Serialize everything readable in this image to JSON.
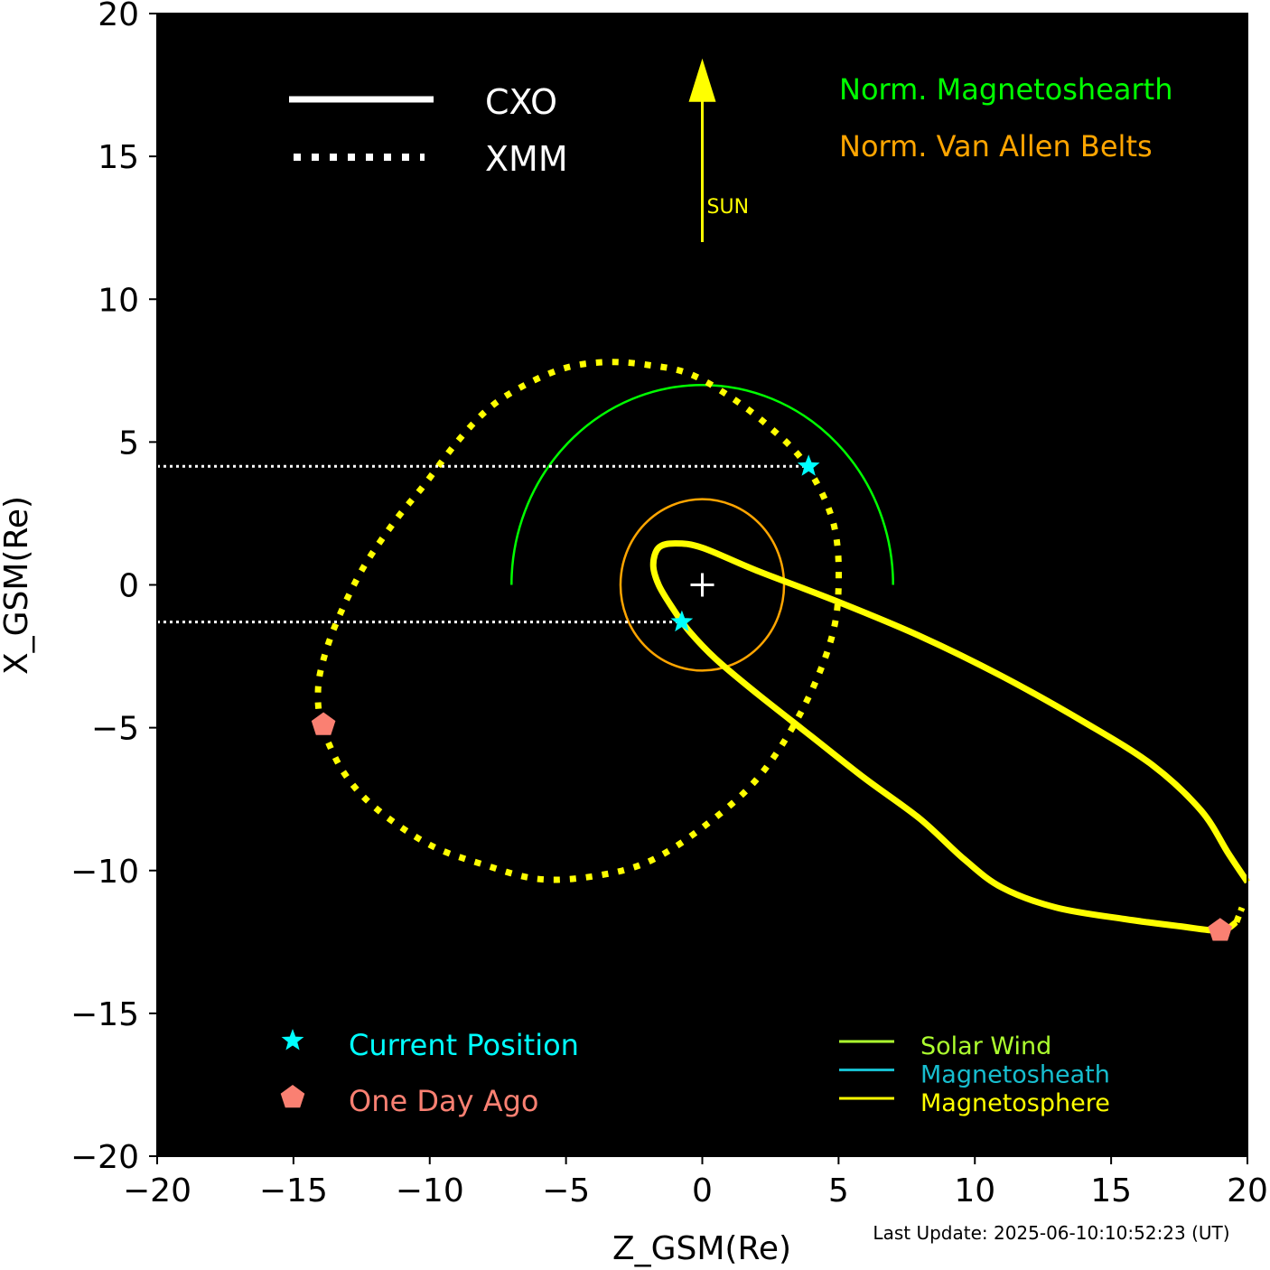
{
  "chart_data": {
    "type": "scatter",
    "xlabel": "Z_GSM(Re)",
    "ylabel": "X_GSM(Re)",
    "xlim": [
      -20,
      20
    ],
    "ylim": [
      -20,
      20
    ],
    "xticks": [
      -20,
      -15,
      -10,
      -5,
      0,
      5,
      10,
      15,
      20
    ],
    "yticks": [
      -20,
      -15,
      -10,
      -5,
      0,
      5,
      10,
      15,
      20
    ],
    "xtick_labels": [
      "−20",
      "−15",
      "−10",
      "−5",
      "0",
      "5",
      "10",
      "15",
      "20"
    ],
    "ytick_labels": [
      "−20",
      "−15",
      "−10",
      "−5",
      "0",
      "5",
      "10",
      "15",
      "20"
    ],
    "background": "#000000",
    "series": [
      {
        "name": "CXO",
        "style": "solid",
        "color": "#ffff00",
        "points": [
          [
            20,
            -10.4
          ],
          [
            19.3,
            -9.4
          ],
          [
            18.3,
            -7.9
          ],
          [
            16.5,
            -6.3
          ],
          [
            14,
            -4.8
          ],
          [
            11,
            -3.2
          ],
          [
            8,
            -1.8
          ],
          [
            5,
            -0.6
          ],
          [
            2,
            0.5
          ],
          [
            0,
            1.3
          ],
          [
            -1,
            1.45
          ],
          [
            -1.6,
            1.3
          ],
          [
            -1.8,
            0.7
          ],
          [
            -1.6,
            0
          ],
          [
            -1.1,
            -0.8
          ],
          [
            -0.5,
            -1.6
          ],
          [
            0.5,
            -2.6
          ],
          [
            2,
            -3.8
          ],
          [
            4,
            -5.3
          ],
          [
            6,
            -6.8
          ],
          [
            8,
            -8.2
          ],
          [
            9.6,
            -9.6
          ],
          [
            11,
            -10.6
          ],
          [
            13,
            -11.3
          ],
          [
            15.5,
            -11.7
          ],
          [
            17.5,
            -11.95
          ],
          [
            19,
            -12.1
          ],
          [
            19.6,
            -11.8
          ]
        ]
      },
      {
        "name": "XMM",
        "style": "dotted",
        "color": "#ffff00",
        "points": [
          [
            -14,
            -4.9
          ],
          [
            -14.1,
            -4
          ],
          [
            -14,
            -3
          ],
          [
            -13.5,
            -1.5
          ],
          [
            -12.5,
            0.5
          ],
          [
            -11.3,
            2.2
          ],
          [
            -10.2,
            3.5
          ],
          [
            -9,
            5
          ],
          [
            -7.8,
            6.2
          ],
          [
            -6.5,
            7
          ],
          [
            -5,
            7.6
          ],
          [
            -3.5,
            7.8
          ],
          [
            -2,
            7.7
          ],
          [
            -0.5,
            7.4
          ],
          [
            1,
            6.6
          ],
          [
            2.5,
            5.5
          ],
          [
            3.8,
            4.2
          ],
          [
            4.8,
            2.2
          ],
          [
            5,
            0
          ],
          [
            4.7,
            -2
          ],
          [
            3.6,
            -4.5
          ],
          [
            2,
            -6.8
          ],
          [
            0,
            -8.5
          ],
          [
            -2,
            -9.7
          ],
          [
            -4,
            -10.2
          ],
          [
            -6,
            -10.3
          ],
          [
            -8,
            -9.8
          ],
          [
            -10,
            -9.1
          ],
          [
            -12,
            -7.8
          ],
          [
            -13.2,
            -6.5
          ],
          [
            -14,
            -4.9
          ]
        ]
      }
    ],
    "extra_xmm_points": [
      [
        19.6,
        -11.8
      ],
      [
        19.8,
        -11.3
      ]
    ],
    "current_position": [
      {
        "series": "XMM",
        "z": 3.9,
        "x": 4.15
      },
      {
        "series": "CXO",
        "z": -0.75,
        "x": -1.3
      }
    ],
    "one_day_ago": [
      {
        "series": "XMM",
        "z": -13.9,
        "x": -4.9
      },
      {
        "series": "CXO",
        "z": 19.0,
        "x": -12.1
      }
    ],
    "magnetosheath_norm": {
      "center": [
        0,
        0
      ],
      "radius": 7,
      "color": "#00ff00",
      "half": "sunward"
    },
    "van_allen_norm": {
      "center": [
        0,
        0
      ],
      "rx": 3,
      "ry": 3,
      "color": "#ffa500"
    },
    "sun_arrow": {
      "z": 0,
      "x_from": 12,
      "x_to": 18.3,
      "label": "SUN",
      "color": "#ffff00"
    },
    "legend_top": [
      {
        "label": "CXO",
        "style": "solid",
        "color": "#ffffff"
      },
      {
        "label": "XMM",
        "style": "dotted",
        "color": "#ffffff"
      }
    ],
    "legend_norm": [
      {
        "label": "Norm. Magnetoshearth",
        "color": "#00ff00"
      },
      {
        "label": "Norm. Van Allen Belts",
        "color": "#ffa500"
      }
    ],
    "legend_markers": [
      {
        "label": "Current Position",
        "marker": "star",
        "color": "#00ffff"
      },
      {
        "label": "One Day Ago",
        "marker": "pentagon",
        "color": "#fa8072"
      }
    ],
    "legend_regions": [
      {
        "label": "Solar Wind",
        "color": "#adff2f"
      },
      {
        "label": "Magnetosheath",
        "color": "#17becf"
      },
      {
        "label": "Magnetosphere",
        "color": "#ffff00"
      }
    ],
    "footer": "Last Update: 2025-06-10:10:52:23 (UT)"
  }
}
